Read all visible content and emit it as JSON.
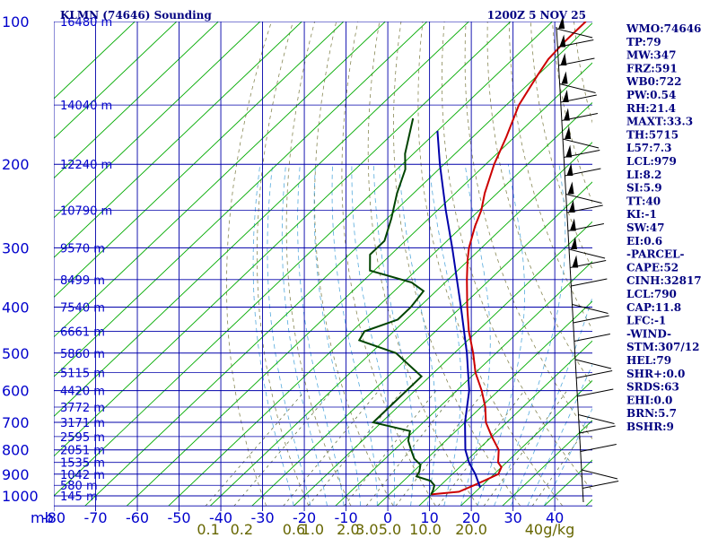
{
  "header": {
    "title": "KLMN (74646) Sounding",
    "time": "1200Z  5 NOV 25"
  },
  "chart_data": {
    "type": "line",
    "title": "KLMN (74646) Sounding",
    "pressure_levels": [
      100,
      200,
      300,
      400,
      500,
      600,
      700,
      800,
      900,
      1000
    ],
    "pressure_unit_label": "mb",
    "temperature_ticks": [
      -80,
      -70,
      -60,
      -50,
      -40,
      -30,
      -20,
      -10,
      0,
      10,
      20,
      30,
      40
    ],
    "xlim": [
      -80,
      49
    ],
    "ylim": [
      100,
      1000
    ],
    "y_scale": "log",
    "height_labels": [
      {
        "p": 100,
        "label": "16480 m"
      },
      {
        "p": 150,
        "label": "14040 m"
      },
      {
        "p": 200,
        "label": "12240 m"
      },
      {
        "p": 250,
        "label": "10790 m"
      },
      {
        "p": 300,
        "label": "9570 m"
      },
      {
        "p": 350,
        "label": "8499 m"
      },
      {
        "p": 400,
        "label": "7540 m"
      },
      {
        "p": 450,
        "label": "6661 m"
      },
      {
        "p": 500,
        "label": "5860 m"
      },
      {
        "p": 550,
        "label": "5115 m"
      },
      {
        "p": 600,
        "label": "4420 m"
      },
      {
        "p": 650,
        "label": "3772 m"
      },
      {
        "p": 700,
        "label": "3171 m"
      },
      {
        "p": 750,
        "label": "2595 m"
      },
      {
        "p": 800,
        "label": "2051 m"
      },
      {
        "p": 850,
        "label": "1535 m"
      },
      {
        "p": 900,
        "label": "1042 m"
      },
      {
        "p": 950,
        "label": "580 m"
      },
      {
        "p": 1000,
        "label": "145 m"
      }
    ],
    "mixing_ratio_labels": [
      {
        "value": "0.1",
        "t": -43
      },
      {
        "value": "0.2",
        "t": -35
      },
      {
        "value": "0.6",
        "t": -22.5
      },
      {
        "value": "1.0",
        "t": -18
      },
      {
        "value": "2.0",
        "t": -9.5
      },
      {
        "value": "3.0",
        "t": -5
      },
      {
        "value": "5.0",
        "t": 0.5
      },
      {
        "value": "10.0",
        "t": 9
      },
      {
        "value": "20.0",
        "t": 20
      },
      {
        "value": "40",
        "t": 35
      },
      {
        "value": "g/kg",
        "t": 41
      }
    ],
    "series": [
      {
        "name": "Temperature",
        "color": "#cc0000",
        "points": [
          [
            993,
            10
          ],
          [
            980,
            16
          ],
          [
            950,
            18
          ],
          [
            925,
            19.5
          ],
          [
            900,
            21
          ],
          [
            870,
            20
          ],
          [
            850,
            18
          ],
          [
            800,
            15
          ],
          [
            750,
            10
          ],
          [
            700,
            5
          ],
          [
            650,
            1
          ],
          [
            600,
            -4
          ],
          [
            550,
            -10
          ],
          [
            500,
            -15.5
          ],
          [
            450,
            -22
          ],
          [
            400,
            -28.5
          ],
          [
            350,
            -35.5
          ],
          [
            320,
            -40
          ],
          [
            300,
            -43
          ],
          [
            270,
            -47
          ],
          [
            250,
            -49.5
          ],
          [
            230,
            -53
          ],
          [
            200,
            -58
          ],
          [
            175,
            -62
          ],
          [
            150,
            -67
          ],
          [
            130,
            -70
          ],
          [
            120,
            -71.5
          ],
          [
            110,
            -72
          ],
          [
            100,
            -72
          ]
        ]
      },
      {
        "name": "Dewpoint",
        "color": "#004400",
        "points": [
          [
            993,
            10
          ],
          [
            975,
            9.5
          ],
          [
            950,
            8.5
          ],
          [
            930,
            6.5
          ],
          [
            910,
            2
          ],
          [
            890,
            1.5
          ],
          [
            860,
            0
          ],
          [
            835,
            -3
          ],
          [
            800,
            -6
          ],
          [
            765,
            -9
          ],
          [
            730,
            -11
          ],
          [
            700,
            -22
          ],
          [
            650,
            -22
          ],
          [
            600,
            -22
          ],
          [
            560,
            -22
          ],
          [
            500,
            -34
          ],
          [
            470,
            -46
          ],
          [
            450,
            -47
          ],
          [
            425,
            -42
          ],
          [
            400,
            -42
          ],
          [
            370,
            -43
          ],
          [
            355,
            -48
          ],
          [
            335,
            -61
          ],
          [
            310,
            -65
          ],
          [
            290,
            -65
          ],
          [
            260,
            -69
          ],
          [
            230,
            -74
          ],
          [
            205,
            -78
          ],
          [
            190,
            -82
          ],
          [
            160,
            -89
          ]
        ]
      },
      {
        "name": "Parcel",
        "color": "#0000aa",
        "points": [
          [
            960,
            20
          ],
          [
            900,
            15.5
          ],
          [
            850,
            11
          ],
          [
            800,
            7
          ],
          [
            700,
            0
          ],
          [
            600,
            -7
          ],
          [
            500,
            -17
          ],
          [
            400,
            -30
          ],
          [
            300,
            -47
          ],
          [
            250,
            -58
          ],
          [
            200,
            -71
          ],
          [
            170,
            -80
          ]
        ]
      }
    ]
  },
  "indices": [
    "WMO:74646",
    "TP:79",
    "MW:347",
    "FRZ:591",
    "WB0:722",
    "PW:0.54",
    "RH:21.4",
    "MAXT:33.3",
    "TH:5715",
    "L57:7.3",
    "LCL:979",
    "LI:8.2",
    "SI:5.9",
    "TT:40",
    "KI:-1",
    "SW:47",
    "EI:0.6",
    "-PARCEL-",
    "CAPE:52",
    "CINH:32817",
    "LCL:790",
    "CAP:11.8",
    "LFC:-1",
    "-WIND-",
    "STM:307/12",
    "HEL:79",
    "SHR+:0.0",
    "SRDS:63",
    "EHI:0.0",
    "BRN:5.7",
    "BSHR:9"
  ],
  "colors": {
    "isobar": "#0000aa",
    "isotherm": "#00aa00",
    "dry_adiabat": "#888855",
    "moist_adiabat": "#55aadd",
    "label_blue": "#0000cc"
  }
}
